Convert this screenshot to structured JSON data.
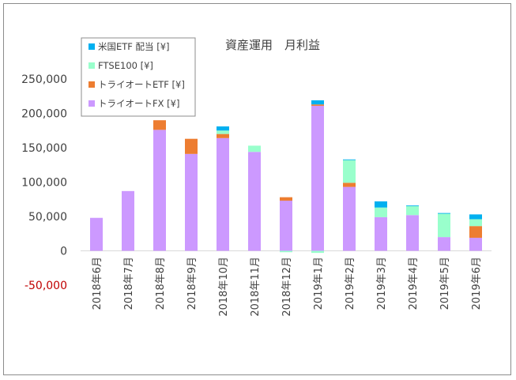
{
  "chart_data": {
    "type": "bar",
    "stacked": true,
    "title": "資産運用　月利益",
    "categories": [
      "2018年6月",
      "2018年7月",
      "2018年8月",
      "2018年9月",
      "2018年10月",
      "2018年11月",
      "2018年12月",
      "2019年1月",
      "2019年2月",
      "2019年3月",
      "2019年4月",
      "2019年5月",
      "2019年6月"
    ],
    "series": [
      {
        "name": "トライオートFX [¥]",
        "color": "#cc99ff",
        "values": [
          48000,
          87000,
          176000,
          141000,
          164000,
          144000,
          73000,
          211000,
          93000,
          49000,
          52000,
          20000,
          19000
        ]
      },
      {
        "name": "トライオートETF [¥]",
        "color": "#ed7d31",
        "values": [
          0,
          0,
          14000,
          22000,
          6000,
          0,
          5000,
          2000,
          6000,
          0,
          0,
          0,
          17000
        ]
      },
      {
        "name": "FTSE100 [¥]",
        "color": "#99ffcc",
        "values": [
          0,
          0,
          0,
          0,
          5000,
          9000,
          -2000,
          -3000,
          33000,
          14000,
          13000,
          34000,
          10000
        ]
      },
      {
        "name": "米国ETF 配当 [¥]",
        "color": "#00b0f0",
        "values": [
          0,
          0,
          0,
          0,
          6000,
          0,
          0,
          6000,
          1000,
          9000,
          1000,
          1000,
          7000
        ]
      }
    ],
    "ylim": [
      -50000,
      250000
    ],
    "yticks": [
      {
        "value": 250000,
        "label": "250,000",
        "color": "#404040"
      },
      {
        "value": 200000,
        "label": "200,000",
        "color": "#404040"
      },
      {
        "value": 150000,
        "label": "150,000",
        "color": "#404040"
      },
      {
        "value": 100000,
        "label": "100,000",
        "color": "#404040"
      },
      {
        "value": 50000,
        "label": "50,000",
        "color": "#404040"
      },
      {
        "value": 0,
        "label": "0",
        "color": "#404040"
      },
      {
        "value": -50000,
        "label": "-50,000",
        "color": "#c00000"
      }
    ],
    "legend_order": [
      3,
      2,
      1,
      0
    ],
    "legend_position": "top-left",
    "grid": false
  }
}
